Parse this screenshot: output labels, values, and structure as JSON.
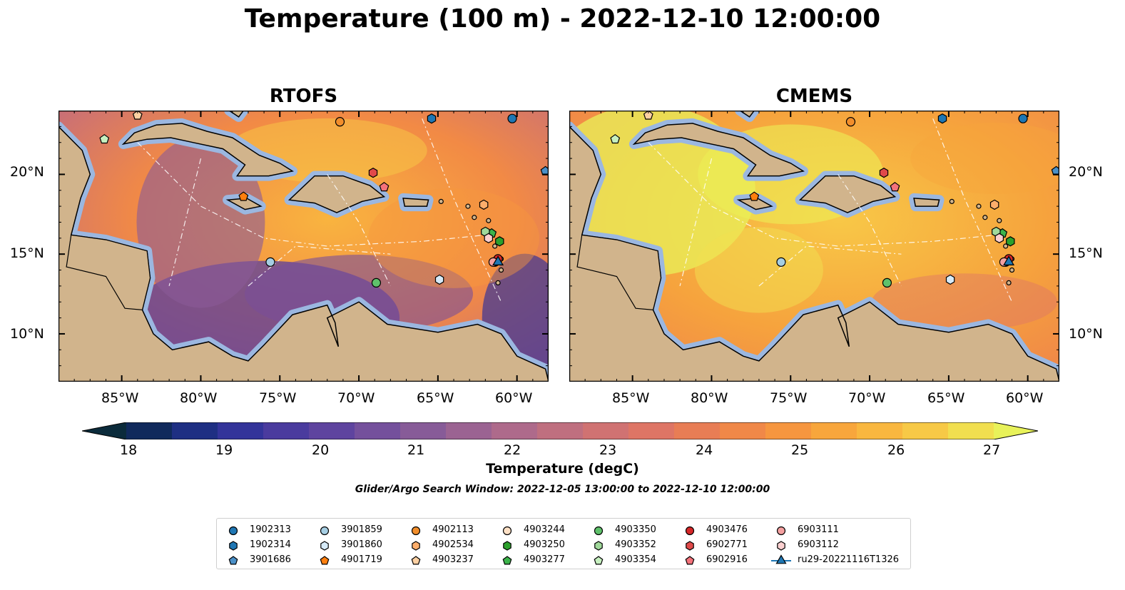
{
  "title": "Temperature (100 m) - 2022-12-10 12:00:00",
  "panels": [
    {
      "name": "RTOFS"
    },
    {
      "name": "CMEMS"
    }
  ],
  "axes": {
    "lon_ticks": [
      "85°W",
      "80°W",
      "75°W",
      "70°W",
      "65°W",
      "60°W"
    ],
    "lat_ticks": [
      "20°N",
      "15°N",
      "10°N"
    ],
    "lon_range": [
      -89,
      -58
    ],
    "lat_range": [
      7,
      24
    ]
  },
  "colorbar": {
    "label": "Temperature (degC)",
    "ticks": [
      "18",
      "19",
      "20",
      "21",
      "22",
      "23",
      "24",
      "25",
      "26",
      "27"
    ],
    "range": [
      18,
      27
    ],
    "extend": "both",
    "colors": [
      "#0b2b3b",
      "#102a5c",
      "#1e2f83",
      "#33349a",
      "#4a3b9e",
      "#5e449f",
      "#74509c",
      "#875b98",
      "#9b6392",
      "#ae6a8b",
      "#bf6f7f",
      "#d07272",
      "#de7565",
      "#e87d55",
      "#f08848",
      "#f6963f",
      "#f8a63c",
      "#f9b73f",
      "#f7c946",
      "#f1df4f",
      "#e8f25a"
    ]
  },
  "search_window": "Glider/Argo Search Window: 2022-12-05 13:00:00 to 2022-12-10 12:00:00",
  "floats": [
    {
      "id": "1902313",
      "marker": "circle",
      "color": "#1f77b4",
      "lon": -60.3,
      "lat": 23.5
    },
    {
      "id": "1902314",
      "marker": "hexagon",
      "color": "#1f77b4",
      "lon": -65.4,
      "lat": 23.5
    },
    {
      "id": "3901686",
      "marker": "pentagon",
      "color": "#4a90c8",
      "lon": -58.2,
      "lat": 20.2
    },
    {
      "id": "3901859",
      "marker": "circle",
      "color": "#a6cee3",
      "lon": -75.6,
      "lat": 14.5
    },
    {
      "id": "3901860",
      "marker": "hexagon",
      "color": "#d6eaf8",
      "lon": -64.9,
      "lat": 13.4
    },
    {
      "id": "4901719",
      "marker": "pentagon",
      "color": "#ff7f0e",
      "lon": -77.3,
      "lat": 18.6
    },
    {
      "id": "4902113",
      "marker": "circle",
      "color": "#f28e2b",
      "lon": -71.2,
      "lat": 23.3
    },
    {
      "id": "4902534",
      "marker": "hexagon",
      "color": "#fdae6b",
      "lon": -62.1,
      "lat": 18.1
    },
    {
      "id": "4903237",
      "marker": "pentagon",
      "color": "#fdd0a2",
      "lon": -84.0,
      "lat": 23.7
    },
    {
      "id": "4903244",
      "marker": "circle",
      "color": "#fde0c5",
      "lon": -61.4,
      "lat": 14.5
    },
    {
      "id": "4903250",
      "marker": "hexagon",
      "color": "#2ca02c",
      "lon": -61.1,
      "lat": 15.8
    },
    {
      "id": "4903277",
      "marker": "pentagon",
      "color": "#3cb44b",
      "lon": -61.6,
      "lat": 16.3
    },
    {
      "id": "4903350",
      "marker": "circle",
      "color": "#5fc16b",
      "lon": -68.9,
      "lat": 13.2
    },
    {
      "id": "4903352",
      "marker": "hexagon",
      "color": "#a1d99b",
      "lon": -62.0,
      "lat": 16.4
    },
    {
      "id": "4903354",
      "marker": "pentagon",
      "color": "#c7f0c0",
      "lon": -86.1,
      "lat": 22.2
    },
    {
      "id": "4903476",
      "marker": "circle",
      "color": "#d62728",
      "lon": -61.2,
      "lat": 14.7
    },
    {
      "id": "6902771",
      "marker": "hexagon",
      "color": "#e04a4a",
      "lon": -69.1,
      "lat": 20.1
    },
    {
      "id": "6902916",
      "marker": "pentagon",
      "color": "#f4727a",
      "lon": -68.4,
      "lat": 19.2
    },
    {
      "id": "6903111",
      "marker": "circle",
      "color": "#f4a0a0",
      "lon": -61.5,
      "lat": 14.5
    },
    {
      "id": "6903112",
      "marker": "hexagon",
      "color": "#fbd0d0",
      "lon": -61.8,
      "lat": 16.0
    },
    {
      "id": "ru29-20221116T1326",
      "marker": "triangle-line",
      "color": "#1f77b4",
      "lon": -61.2,
      "lat": 14.5
    }
  ]
}
